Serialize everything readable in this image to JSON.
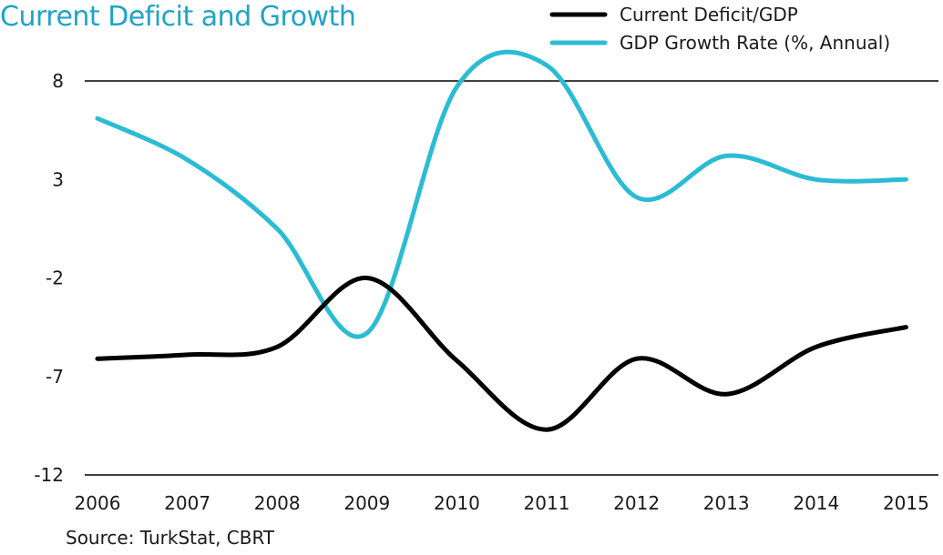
{
  "chart_data": {
    "type": "line",
    "title": "Current Deficit and Growth",
    "source": "Source: TurkStat, CBRT",
    "x": [
      2006,
      2007,
      2008,
      2009,
      2010,
      2011,
      2012,
      2013,
      2014,
      2015
    ],
    "x_tick_labels": [
      "2006",
      "2007",
      "2008",
      "2009",
      "2010",
      "2011",
      "2012",
      "2013",
      "2014",
      "2015"
    ],
    "ylim": [
      -12,
      8
    ],
    "y_ticks": [
      8,
      3,
      -2,
      -7,
      -12
    ],
    "y_tick_labels": [
      "8",
      "3",
      "-2",
      "-7",
      "-12"
    ],
    "reference_line": 8,
    "grid": false,
    "legend_position": "top-right",
    "series": [
      {
        "name": "Current Deficit/GDP",
        "color": "#000000",
        "values": [
          -6.1,
          -5.9,
          -5.5,
          -2.0,
          -6.2,
          -9.7,
          -6.1,
          -7.9,
          -5.5,
          -4.5
        ]
      },
      {
        "name": "GDP Growth Rate (%, Annual)",
        "color": "#2bbcd4",
        "values": [
          6.1,
          4.0,
          0.5,
          -4.8,
          7.7,
          8.8,
          2.1,
          4.2,
          3.0,
          3.0
        ]
      }
    ],
    "colors": {
      "title": "#1fa3c8",
      "axis": "#000000",
      "text": "#1a1a1a"
    }
  }
}
